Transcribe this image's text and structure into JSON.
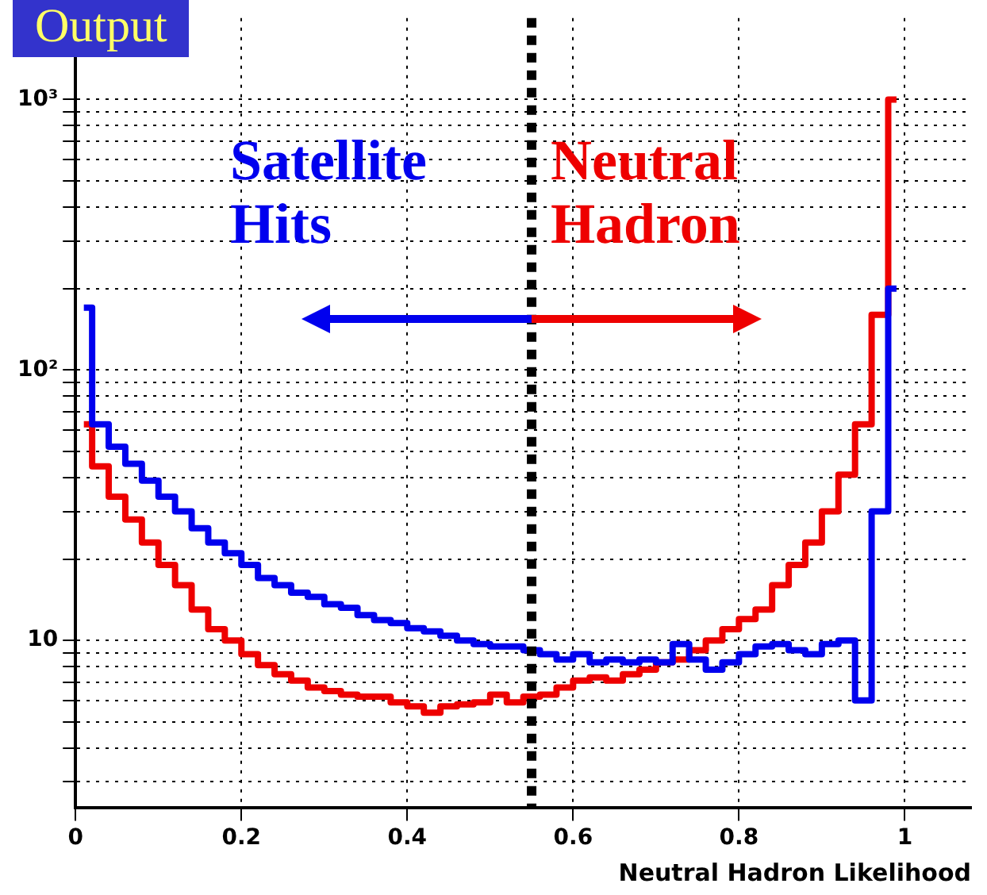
{
  "chart_data": {
    "type": "step",
    "title": "Output",
    "xlabel": "Neutral Hadron Likelihood",
    "x": [
      0.01,
      0.03,
      0.05,
      0.07,
      0.09,
      0.11,
      0.13,
      0.15,
      0.17,
      0.19,
      0.21,
      0.23,
      0.25,
      0.27,
      0.29,
      0.31,
      0.33,
      0.35,
      0.37,
      0.39,
      0.41,
      0.43,
      0.45,
      0.47,
      0.49,
      0.51,
      0.53,
      0.55,
      0.57,
      0.59,
      0.61,
      0.63,
      0.65,
      0.67,
      0.69,
      0.71,
      0.73,
      0.75,
      0.77,
      0.79,
      0.81,
      0.83,
      0.85,
      0.87,
      0.89,
      0.91,
      0.93,
      0.95,
      0.97,
      0.99
    ],
    "series": [
      {
        "name": "Satellite Hits",
        "color": "#0000ee",
        "values": [
          170,
          63,
          52,
          45,
          39,
          34,
          30,
          26,
          23,
          21,
          19,
          17,
          16,
          15,
          14.5,
          13.6,
          13.2,
          12.4,
          11.9,
          11.6,
          11.1,
          10.8,
          10.4,
          10,
          9.7,
          9.5,
          9.5,
          9.2,
          8.9,
          8.5,
          8.9,
          8.3,
          8.5,
          8.3,
          8.5,
          8.3,
          9.7,
          8.5,
          7.8,
          8.3,
          8.9,
          9.5,
          9.7,
          9.2,
          8.9,
          9.7,
          10,
          6,
          30,
          200
        ]
      },
      {
        "name": "Neutral Hadron",
        "color": "#ee0000",
        "values": [
          63,
          44,
          34,
          28,
          23,
          19,
          16,
          13,
          11,
          10,
          8.9,
          8.1,
          7.5,
          7.1,
          6.7,
          6.5,
          6.3,
          6.2,
          6.2,
          5.9,
          5.7,
          5.4,
          5.7,
          5.8,
          5.9,
          6.3,
          5.9,
          6.2,
          6.3,
          6.7,
          7.1,
          7.3,
          7.1,
          7.5,
          7.8,
          8.3,
          8.5,
          9.2,
          10,
          11,
          12,
          13,
          16,
          19,
          23,
          30,
          41,
          63,
          160,
          1000
        ]
      }
    ],
    "xlim": [
      0,
      1.08
    ],
    "xticks": [
      0,
      0.2,
      0.4,
      0.6,
      0.8,
      1
    ],
    "ylim": [
      2.4,
      2000
    ],
    "log": true,
    "yticks": [
      {
        "value": 3,
        "label": null
      },
      {
        "value": 4,
        "label": null
      },
      {
        "value": 5,
        "label": null
      },
      {
        "value": 6,
        "label": null
      },
      {
        "value": 7,
        "label": null
      },
      {
        "value": 8,
        "label": null
      },
      {
        "value": 9,
        "label": null
      },
      10,
      {
        "value": 20,
        "label": null
      },
      {
        "value": 30,
        "label": null
      },
      {
        "value": 40,
        "label": null
      },
      {
        "value": 50,
        "label": null
      },
      {
        "value": 60,
        "label": null
      },
      {
        "value": 70,
        "label": null
      },
      {
        "value": 80,
        "label": null
      },
      {
        "value": 90,
        "label": null
      },
      {
        "value": 100,
        "label": "10²"
      },
      {
        "value": 200,
        "label": null
      },
      {
        "value": 300,
        "label": null
      },
      {
        "value": 400,
        "label": null
      },
      {
        "value": 500,
        "label": null
      },
      {
        "value": 600,
        "label": null
      },
      {
        "value": 700,
        "label": null
      },
      {
        "value": 800,
        "label": null
      },
      {
        "value": 900,
        "label": null
      },
      {
        "value": 1000,
        "label": "10³"
      }
    ],
    "grid": true,
    "legend": false,
    "ref_lines": [
      {
        "axis": "x",
        "value": 0.55,
        "color": "#000000",
        "line_style": "dashed"
      }
    ]
  }
}
